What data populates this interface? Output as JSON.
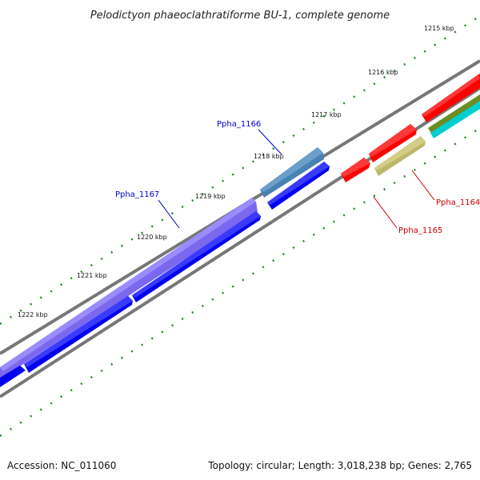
{
  "title": "Pelodictyon phaeoclathratiforme BU-1, complete genome",
  "footer": {
    "accession": "Accession: NC_011060",
    "summary": "Topology: circular; Length: 3,018,238 bp; Genes: 2,765"
  },
  "kbp_ticks": [
    "1215 kbp",
    "1216 kbp",
    "1217 kbp",
    "1218 kbp",
    "1219 kbp",
    "1220 kbp",
    "1221 kbp",
    "1222 kbp"
  ],
  "gene_labels": [
    {
      "name": "Ppha_1166",
      "color": "#0000cc"
    },
    {
      "name": "Ppha_1167",
      "color": "#0000cc"
    },
    {
      "name": "Ppha_1164",
      "color": "#cc0000"
    },
    {
      "name": "Ppha_1165",
      "color": "#cc0000"
    }
  ],
  "colors": {
    "blue_gene": "#0000ee",
    "purple_gene": "#7b68ee",
    "steel_gene": "#4682b4",
    "red_gene": "#ff0000",
    "khaki_gene": "#bdb76b",
    "olive_gene": "#6b8e23",
    "cyan_gene": "#00ced1",
    "backbone": "#808080",
    "tick": "#228b22"
  }
}
